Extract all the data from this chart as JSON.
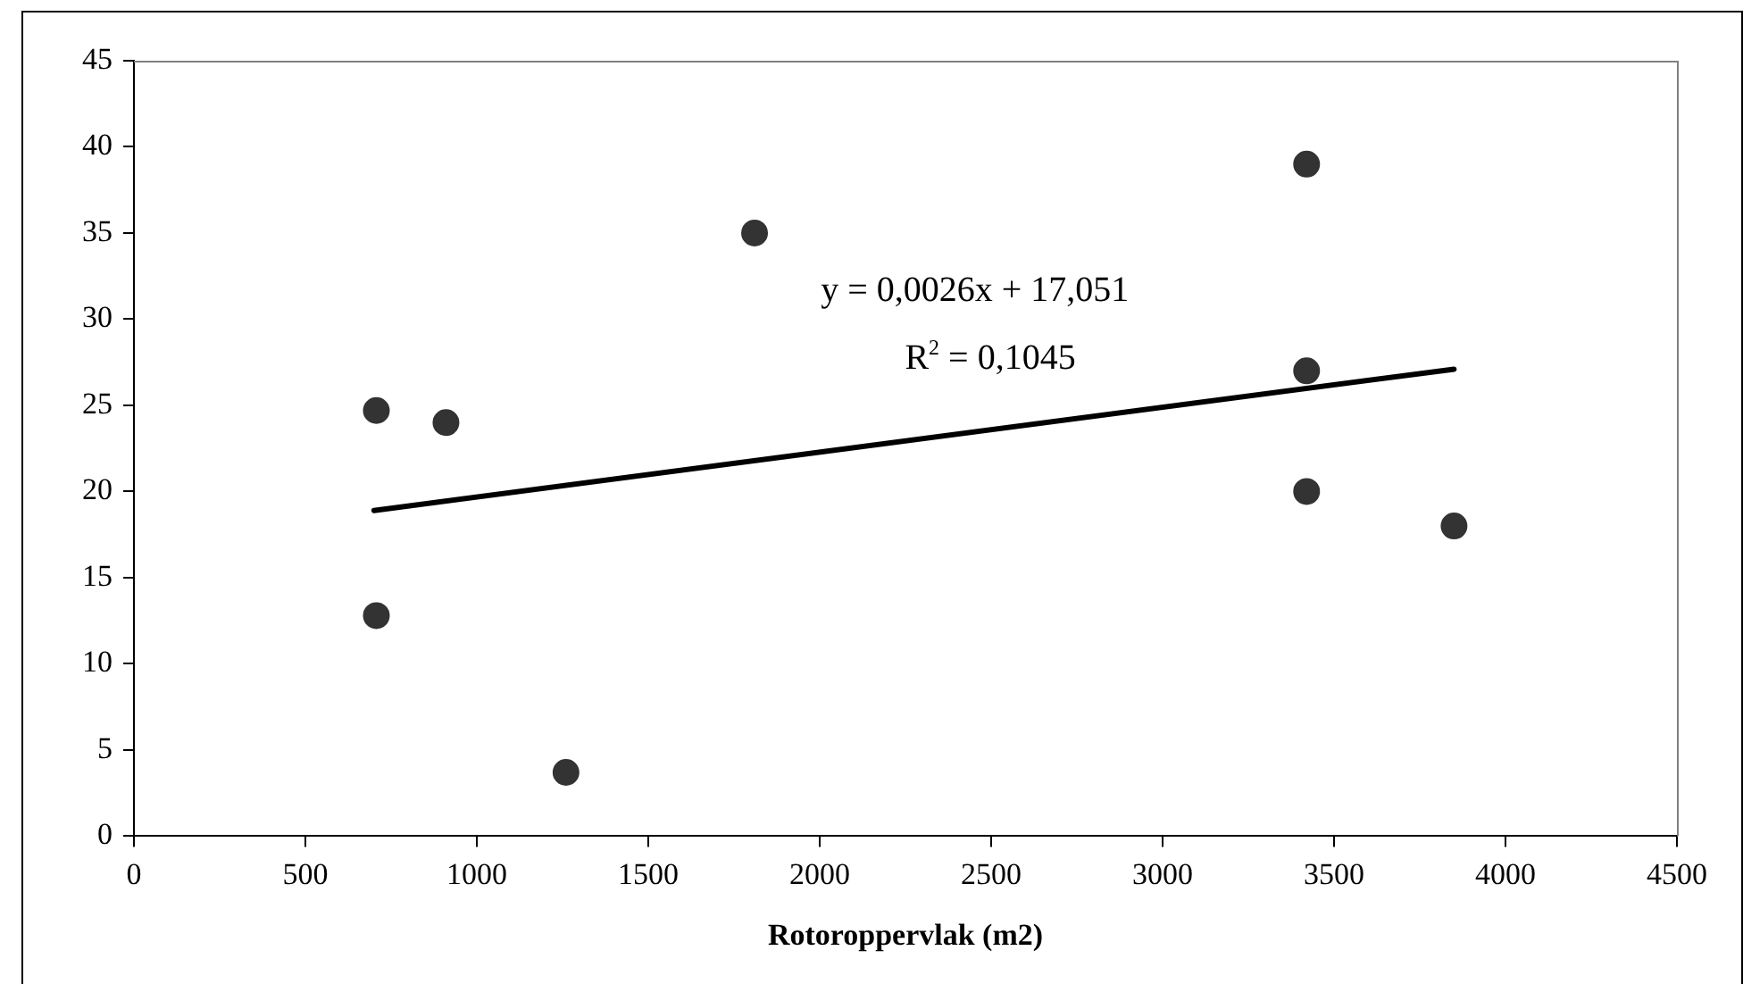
{
  "chart_data": {
    "type": "scatter",
    "xlabel": "Rotoroppervlak (m2)",
    "series": [
      {
        "color": "#333333",
        "marker": "circle",
        "x": [
          707,
          910,
          707,
          1260,
          1810,
          3420,
          3420,
          3420,
          3850
        ],
        "values": [
          24.7,
          24,
          12.8,
          3.7,
          35,
          39,
          27,
          20,
          18
        ]
      },
      {
        "type": "line",
        "color": "#000000",
        "x": [
          700,
          3850
        ],
        "values": [
          18.9,
          27.1
        ]
      }
    ],
    "annotations": [
      "y = 0,0026x + 17,051",
      "R$^{2}$ = 0,1045"
    ],
    "xlim": [
      0,
      4500
    ],
    "xticks": [
      0,
      500,
      1000,
      1500,
      2000,
      2500,
      3000,
      3500,
      4000,
      4500
    ],
    "ylim": [
      0,
      45
    ],
    "yticks": [
      0,
      5,
      10,
      15,
      20,
      25,
      30,
      35,
      40,
      45
    ],
    "grid": false,
    "legend": false
  }
}
